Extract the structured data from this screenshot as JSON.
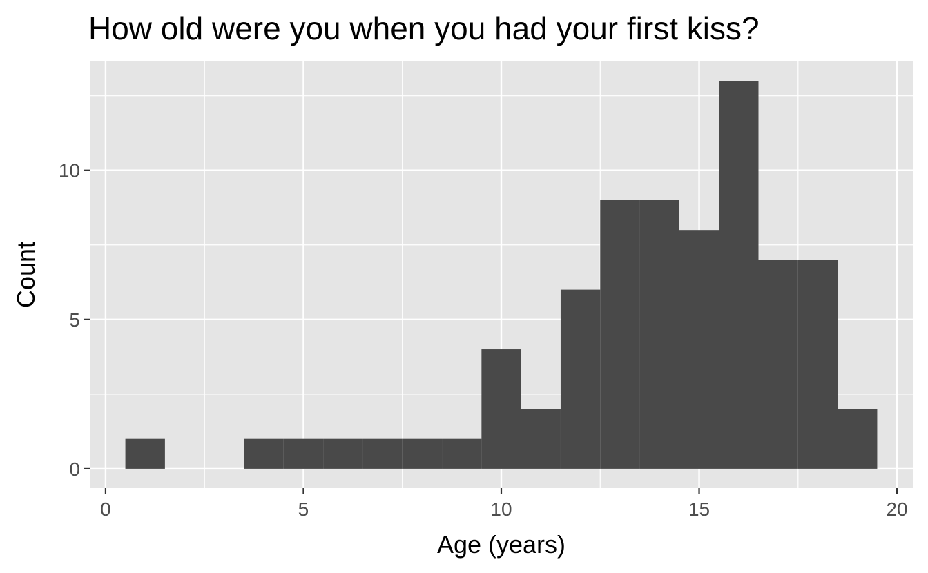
{
  "chart_data": {
    "type": "bar",
    "title": "How old were you when you had your first kiss?",
    "xlabel": "Age (years)",
    "ylabel": "Count",
    "binwidth": 1,
    "bins": [
      {
        "x": 1,
        "count": 1
      },
      {
        "x": 2,
        "count": 0
      },
      {
        "x": 3,
        "count": 0
      },
      {
        "x": 4,
        "count": 1
      },
      {
        "x": 5,
        "count": 1
      },
      {
        "x": 6,
        "count": 1
      },
      {
        "x": 7,
        "count": 1
      },
      {
        "x": 8,
        "count": 1
      },
      {
        "x": 9,
        "count": 1
      },
      {
        "x": 10,
        "count": 4
      },
      {
        "x": 11,
        "count": 2
      },
      {
        "x": 12,
        "count": 6
      },
      {
        "x": 13,
        "count": 9
      },
      {
        "x": 14,
        "count": 9
      },
      {
        "x": 15,
        "count": 8
      },
      {
        "x": 16,
        "count": 13
      },
      {
        "x": 17,
        "count": 7
      },
      {
        "x": 18,
        "count": 7
      },
      {
        "x": 19,
        "count": 2
      }
    ],
    "xlim": [
      -0.4,
      20.4
    ],
    "ylim": [
      -0.65,
      13.65
    ],
    "xticks": [
      0,
      5,
      10,
      15,
      20
    ],
    "xtick_labels": [
      "0",
      "5",
      "10",
      "15",
      "20"
    ],
    "yticks": [
      0,
      5,
      10
    ],
    "ytick_labels": [
      "0",
      "5",
      "10"
    ],
    "grid": true,
    "colors": {
      "bar": "#494949",
      "panel": "#e5e5e5",
      "grid": "#ffffff",
      "tick_text": "#4d4d4d"
    }
  }
}
